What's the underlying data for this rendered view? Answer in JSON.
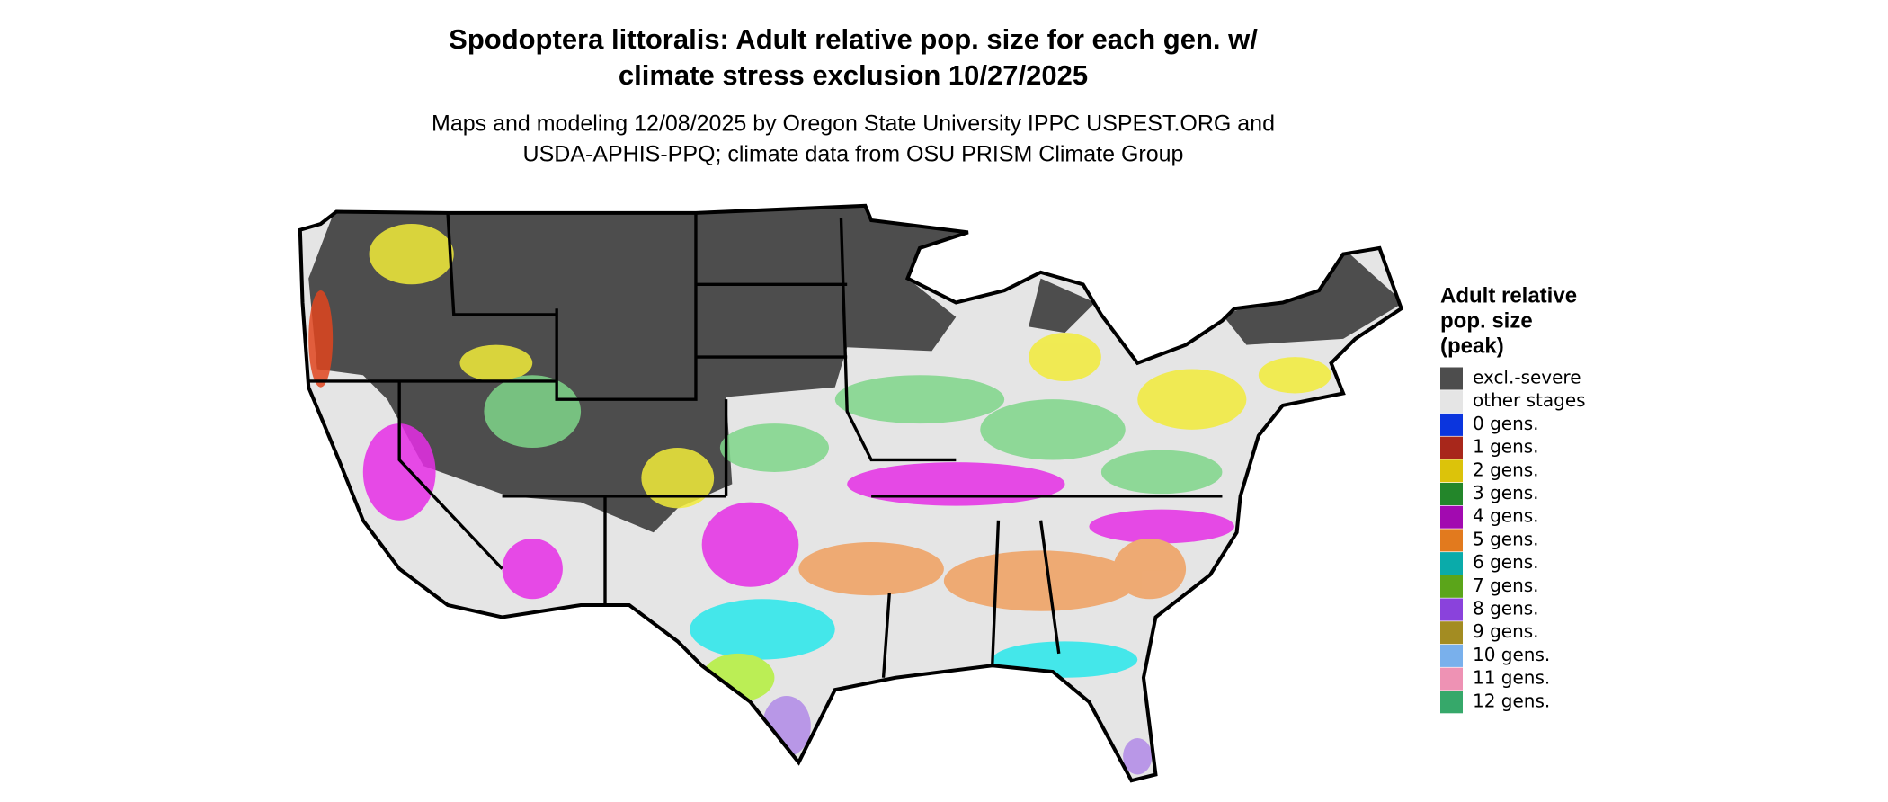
{
  "header": {
    "title": [
      "Spodoptera littoralis: Adult relative pop. size for each gen. w/",
      "climate stress exclusion 10/27/2025"
    ],
    "subtitle": [
      "Maps and modeling 12/08/2025 by Oregon State University IPPC USPEST.ORG and",
      "USDA-APHIS-PPQ; climate data from OSU PRISM Climate Group"
    ]
  },
  "legend": {
    "title": [
      "Adult relative",
      "pop. size",
      "(peak)"
    ],
    "items": [
      {
        "label": "excl.-severe",
        "color": "#4d4d4d"
      },
      {
        "label": "other stages",
        "color": "#e5e5e5"
      },
      {
        "label": "0 gens.",
        "color": "#0b35de"
      },
      {
        "label": "1 gens.",
        "color": "#a8271b"
      },
      {
        "label": "2 gens.",
        "color": "#dcc30a"
      },
      {
        "label": "3 gens.",
        "color": "#23862a"
      },
      {
        "label": "4 gens.",
        "color": "#a20ab0"
      },
      {
        "label": "5 gens.",
        "color": "#e27a1e"
      },
      {
        "label": "6 gens.",
        "color": "#0aabaa"
      },
      {
        "label": "7 gens.",
        "color": "#5ba51a"
      },
      {
        "label": "8 gens.",
        "color": "#8a42dc"
      },
      {
        "label": "9 gens.",
        "color": "#a38c22"
      },
      {
        "label": "10 gens.",
        "color": "#79b0ec"
      },
      {
        "label": "11 gens.",
        "color": "#ee92b4"
      },
      {
        "label": "12 gens.",
        "color": "#36a86a"
      }
    ]
  }
}
